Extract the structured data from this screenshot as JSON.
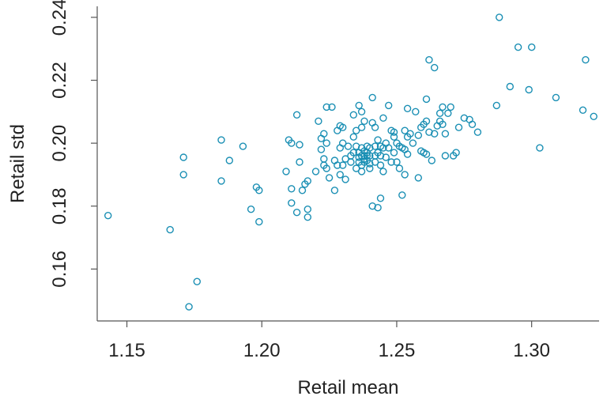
{
  "chart_data": {
    "type": "scatter",
    "title": "",
    "xlabel": "Retail mean",
    "ylabel": "Retail std",
    "xlim": [
      1.139,
      1.325
    ],
    "ylim": [
      0.1435,
      0.2435
    ],
    "xticks": [
      1.15,
      1.2,
      1.25,
      1.3
    ],
    "yticks": [
      0.16,
      0.18,
      0.2,
      0.22,
      0.24
    ],
    "xtick_labels": [
      "1.15",
      "1.20",
      "1.25",
      "1.30"
    ],
    "ytick_labels": [
      "0.16",
      "0.18",
      "0.20",
      "0.22",
      "0.24"
    ],
    "grid": false,
    "marker_color": "#1a8fb4",
    "series": [
      {
        "points": [
          [
            1.143,
            0.177
          ],
          [
            1.166,
            0.1725
          ],
          [
            1.171,
            0.1955
          ],
          [
            1.171,
            0.19
          ],
          [
            1.173,
            0.148
          ],
          [
            1.176,
            0.156
          ],
          [
            1.185,
            0.201
          ],
          [
            1.185,
            0.188
          ],
          [
            1.188,
            0.1945
          ],
          [
            1.193,
            0.199
          ],
          [
            1.196,
            0.179
          ],
          [
            1.198,
            0.186
          ],
          [
            1.199,
            0.185
          ],
          [
            1.199,
            0.175
          ],
          [
            1.209,
            0.191
          ],
          [
            1.21,
            0.201
          ],
          [
            1.211,
            0.2
          ],
          [
            1.211,
            0.1855
          ],
          [
            1.211,
            0.181
          ],
          [
            1.213,
            0.209
          ],
          [
            1.213,
            0.178
          ],
          [
            1.214,
            0.1995
          ],
          [
            1.214,
            0.194
          ],
          [
            1.215,
            0.185
          ],
          [
            1.216,
            0.187
          ],
          [
            1.217,
            0.179
          ],
          [
            1.217,
            0.1765
          ],
          [
            1.217,
            0.188
          ],
          [
            1.22,
            0.191
          ],
          [
            1.221,
            0.207
          ],
          [
            1.222,
            0.2015
          ],
          [
            1.222,
            0.198
          ],
          [
            1.223,
            0.203
          ],
          [
            1.223,
            0.195
          ],
          [
            1.223,
            0.193
          ],
          [
            1.224,
            0.2115
          ],
          [
            1.224,
            0.2
          ],
          [
            1.224,
            0.192
          ],
          [
            1.225,
            0.189
          ],
          [
            1.226,
            0.2115
          ],
          [
            1.227,
            0.1945
          ],
          [
            1.227,
            0.185
          ],
          [
            1.228,
            0.204
          ],
          [
            1.228,
            0.193
          ],
          [
            1.229,
            0.2055
          ],
          [
            1.229,
            0.1985
          ],
          [
            1.229,
            0.19
          ],
          [
            1.23,
            0.205
          ],
          [
            1.23,
            0.2
          ],
          [
            1.23,
            0.193
          ],
          [
            1.231,
            0.195
          ],
          [
            1.231,
            0.1885
          ],
          [
            1.232,
            0.199
          ],
          [
            1.233,
            0.196
          ],
          [
            1.233,
            0.194
          ],
          [
            1.234,
            0.209
          ],
          [
            1.234,
            0.202
          ],
          [
            1.234,
            0.197
          ],
          [
            1.235,
            0.204
          ],
          [
            1.235,
            0.199
          ],
          [
            1.235,
            0.192
          ],
          [
            1.236,
            0.212
          ],
          [
            1.236,
            0.197
          ],
          [
            1.236,
            0.1955
          ],
          [
            1.236,
            0.194
          ],
          [
            1.237,
            0.21
          ],
          [
            1.237,
            0.205
          ],
          [
            1.237,
            0.1985
          ],
          [
            1.237,
            0.196
          ],
          [
            1.237,
            0.193
          ],
          [
            1.237,
            0.191
          ],
          [
            1.238,
            0.207
          ],
          [
            1.238,
            0.1975
          ],
          [
            1.238,
            0.196
          ],
          [
            1.238,
            0.195
          ],
          [
            1.238,
            0.194
          ],
          [
            1.239,
            0.199
          ],
          [
            1.239,
            0.197
          ],
          [
            1.239,
            0.196
          ],
          [
            1.239,
            0.1945
          ],
          [
            1.24,
            0.1985
          ],
          [
            1.24,
            0.196
          ],
          [
            1.24,
            0.1935
          ],
          [
            1.24,
            0.192
          ],
          [
            1.241,
            0.2145
          ],
          [
            1.241,
            0.2065
          ],
          [
            1.241,
            0.18
          ],
          [
            1.242,
            0.205
          ],
          [
            1.242,
            0.199
          ],
          [
            1.242,
            0.196
          ],
          [
            1.242,
            0.194
          ],
          [
            1.243,
            0.201
          ],
          [
            1.243,
            0.197
          ],
          [
            1.243,
            0.1795
          ],
          [
            1.244,
            0.199
          ],
          [
            1.244,
            0.196
          ],
          [
            1.244,
            0.193
          ],
          [
            1.244,
            0.1825
          ],
          [
            1.245,
            0.208
          ],
          [
            1.245,
            0.1985
          ],
          [
            1.245,
            0.191
          ],
          [
            1.246,
            0.2
          ],
          [
            1.246,
            0.1955
          ],
          [
            1.247,
            0.212
          ],
          [
            1.247,
            0.1985
          ],
          [
            1.248,
            0.204
          ],
          [
            1.248,
            0.194
          ],
          [
            1.249,
            0.2035
          ],
          [
            1.249,
            0.202
          ],
          [
            1.249,
            0.197
          ],
          [
            1.25,
            0.2
          ],
          [
            1.25,
            0.194
          ],
          [
            1.251,
            0.199
          ],
          [
            1.251,
            0.192
          ],
          [
            1.252,
            0.1985
          ],
          [
            1.252,
            0.1835
          ],
          [
            1.253,
            0.204
          ],
          [
            1.253,
            0.198
          ],
          [
            1.253,
            0.19
          ],
          [
            1.254,
            0.211
          ],
          [
            1.254,
            0.202
          ],
          [
            1.254,
            0.1965
          ],
          [
            1.255,
            0.203
          ],
          [
            1.256,
            0.2
          ],
          [
            1.257,
            0.21
          ],
          [
            1.258,
            0.189
          ],
          [
            1.258,
            0.2025
          ],
          [
            1.259,
            0.205
          ],
          [
            1.259,
            0.1975
          ],
          [
            1.26,
            0.206
          ],
          [
            1.26,
            0.197
          ],
          [
            1.261,
            0.207
          ],
          [
            1.261,
            0.214
          ],
          [
            1.261,
            0.1965
          ],
          [
            1.262,
            0.2265
          ],
          [
            1.262,
            0.2035
          ],
          [
            1.263,
            0.1945
          ],
          [
            1.264,
            0.224
          ],
          [
            1.264,
            0.203
          ],
          [
            1.265,
            0.2055
          ],
          [
            1.266,
            0.2095
          ],
          [
            1.266,
            0.207
          ],
          [
            1.267,
            0.2115
          ],
          [
            1.267,
            0.206
          ],
          [
            1.268,
            0.203
          ],
          [
            1.268,
            0.196
          ],
          [
            1.269,
            0.2095
          ],
          [
            1.27,
            0.2115
          ],
          [
            1.271,
            0.196
          ],
          [
            1.272,
            0.197
          ],
          [
            1.273,
            0.205
          ],
          [
            1.275,
            0.208
          ],
          [
            1.277,
            0.2075
          ],
          [
            1.278,
            0.206
          ],
          [
            1.28,
            0.2035
          ],
          [
            1.287,
            0.212
          ],
          [
            1.288,
            0.24
          ],
          [
            1.292,
            0.218
          ],
          [
            1.295,
            0.2305
          ],
          [
            1.299,
            0.217
          ],
          [
            1.3,
            0.2305
          ],
          [
            1.303,
            0.1985
          ],
          [
            1.309,
            0.2145
          ],
          [
            1.319,
            0.2105
          ],
          [
            1.32,
            0.2265
          ],
          [
            1.323,
            0.2085
          ]
        ]
      }
    ]
  }
}
